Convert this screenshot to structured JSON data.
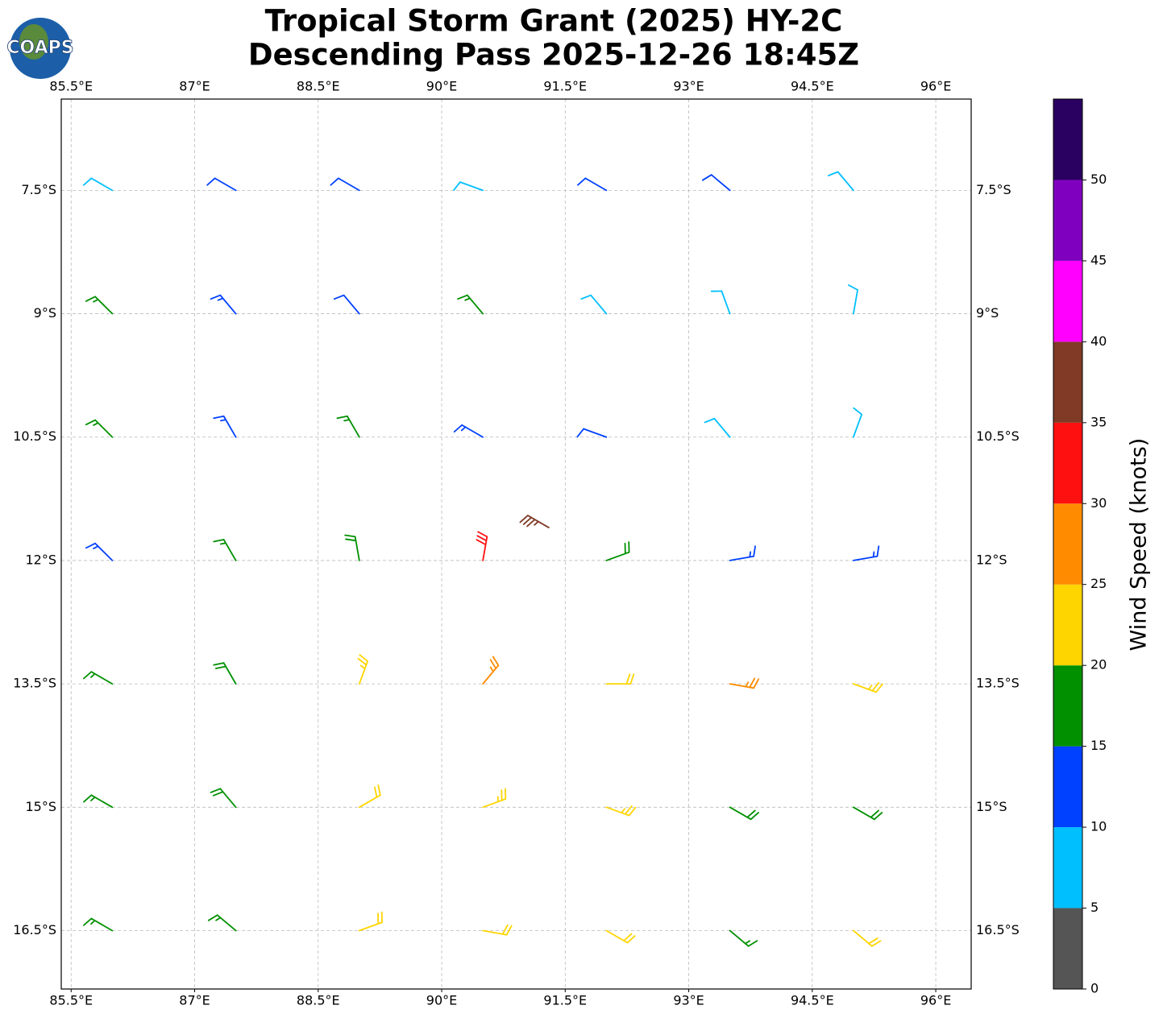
{
  "logo": "COAPS",
  "chart_data": {
    "type": "wind-barbs",
    "title": [
      "Tropical Storm Grant (2025) HY-2C",
      "Descending Pass 2025-12-26 18:45Z"
    ],
    "xlim": [
      85.38,
      96.43
    ],
    "ylim": [
      -17.21,
      -6.39
    ],
    "xticks": [
      {
        "value": 85.5,
        "label": "85.5°E"
      },
      {
        "value": 87,
        "label": "87°E"
      },
      {
        "value": 88.5,
        "label": "88.5°E"
      },
      {
        "value": 90,
        "label": "90°E"
      },
      {
        "value": 91.5,
        "label": "91.5°E"
      },
      {
        "value": 93,
        "label": "93°E"
      },
      {
        "value": 94.5,
        "label": "94.5°E"
      },
      {
        "value": 96,
        "label": "96°E"
      }
    ],
    "yticks": [
      {
        "value": -7.5,
        "label": "7.5°S"
      },
      {
        "value": -9,
        "label": "9°S"
      },
      {
        "value": -10.5,
        "label": "10.5°S"
      },
      {
        "value": -12,
        "label": "12°S"
      },
      {
        "value": -13.5,
        "label": "13.5°S"
      },
      {
        "value": -15,
        "label": "15°S"
      },
      {
        "value": -16.5,
        "label": "16.5°S"
      }
    ],
    "grid": true,
    "barbs": [
      [
        86,
        -7.5,
        8,
        300
      ],
      [
        87.5,
        -7.5,
        12,
        300
      ],
      [
        89,
        -7.5,
        12,
        300
      ],
      [
        90.5,
        -7.5,
        9,
        290
      ],
      [
        92,
        -7.5,
        12,
        300
      ],
      [
        93.5,
        -7.5,
        12,
        310
      ],
      [
        95,
        -7.5,
        9,
        320
      ],
      [
        86,
        -9,
        16,
        315
      ],
      [
        87.5,
        -9,
        13,
        320
      ],
      [
        89,
        -9,
        12,
        320
      ],
      [
        90.5,
        -9,
        16,
        320
      ],
      [
        92,
        -9,
        9,
        320
      ],
      [
        93.5,
        -9,
        8,
        340
      ],
      [
        95,
        -9,
        8,
        10
      ],
      [
        86,
        -10.5,
        17,
        315
      ],
      [
        87.5,
        -10.5,
        14,
        330
      ],
      [
        89,
        -10.5,
        16,
        330
      ],
      [
        90.5,
        -10.5,
        14,
        300
      ],
      [
        92,
        -10.5,
        12,
        290
      ],
      [
        93.5,
        -10.5,
        9,
        320
      ],
      [
        95,
        -10.5,
        8,
        20
      ],
      [
        86,
        -12,
        14,
        315
      ],
      [
        87.5,
        -12,
        17,
        330
      ],
      [
        89,
        -12,
        18,
        350
      ],
      [
        90.5,
        -12,
        32,
        10
      ],
      [
        92,
        -12,
        18,
        70
      ],
      [
        93.5,
        -12,
        14,
        80
      ],
      [
        95,
        -12,
        13,
        80
      ],
      [
        86,
        -13.5,
        17,
        300
      ],
      [
        87.5,
        -13.5,
        18,
        330
      ],
      [
        89,
        -13.5,
        23,
        20
      ],
      [
        90.5,
        -13.5,
        27,
        40
      ],
      [
        92,
        -13.5,
        22,
        90
      ],
      [
        93.5,
        -13.5,
        26,
        100
      ],
      [
        95,
        -13.5,
        23,
        110
      ],
      [
        86,
        -15,
        17,
        300
      ],
      [
        87.5,
        -15,
        18,
        320
      ],
      [
        89,
        -15,
        22,
        60
      ],
      [
        90.5,
        -15,
        23,
        70
      ],
      [
        92,
        -15,
        23,
        110
      ],
      [
        93.5,
        -15,
        18,
        120
      ],
      [
        95,
        -15,
        18,
        120
      ],
      [
        86,
        -16.5,
        17,
        300
      ],
      [
        87.5,
        -16.5,
        17,
        310
      ],
      [
        89,
        -16.5,
        21,
        70
      ],
      [
        90.5,
        -16.5,
        22,
        100
      ],
      [
        92,
        -16.5,
        21,
        120
      ],
      [
        93.5,
        -16.5,
        17,
        130
      ],
      [
        95,
        -16.5,
        21,
        130
      ],
      [
        91.3,
        -11.6,
        37,
        300
      ]
    ],
    "colorbar": {
      "label": "Wind Speed (knots)",
      "lim": [
        0,
        55
      ],
      "ticks": [
        0,
        5,
        10,
        15,
        20,
        25,
        30,
        35,
        40,
        45,
        50
      ],
      "colors": [
        "#555555",
        "#00bfff",
        "#0040ff",
        "#009000",
        "#ffd500",
        "#ff8c00",
        "#ff1010",
        "#803a25",
        "#ff00ff",
        "#8000c0",
        "#2a0060"
      ]
    }
  }
}
